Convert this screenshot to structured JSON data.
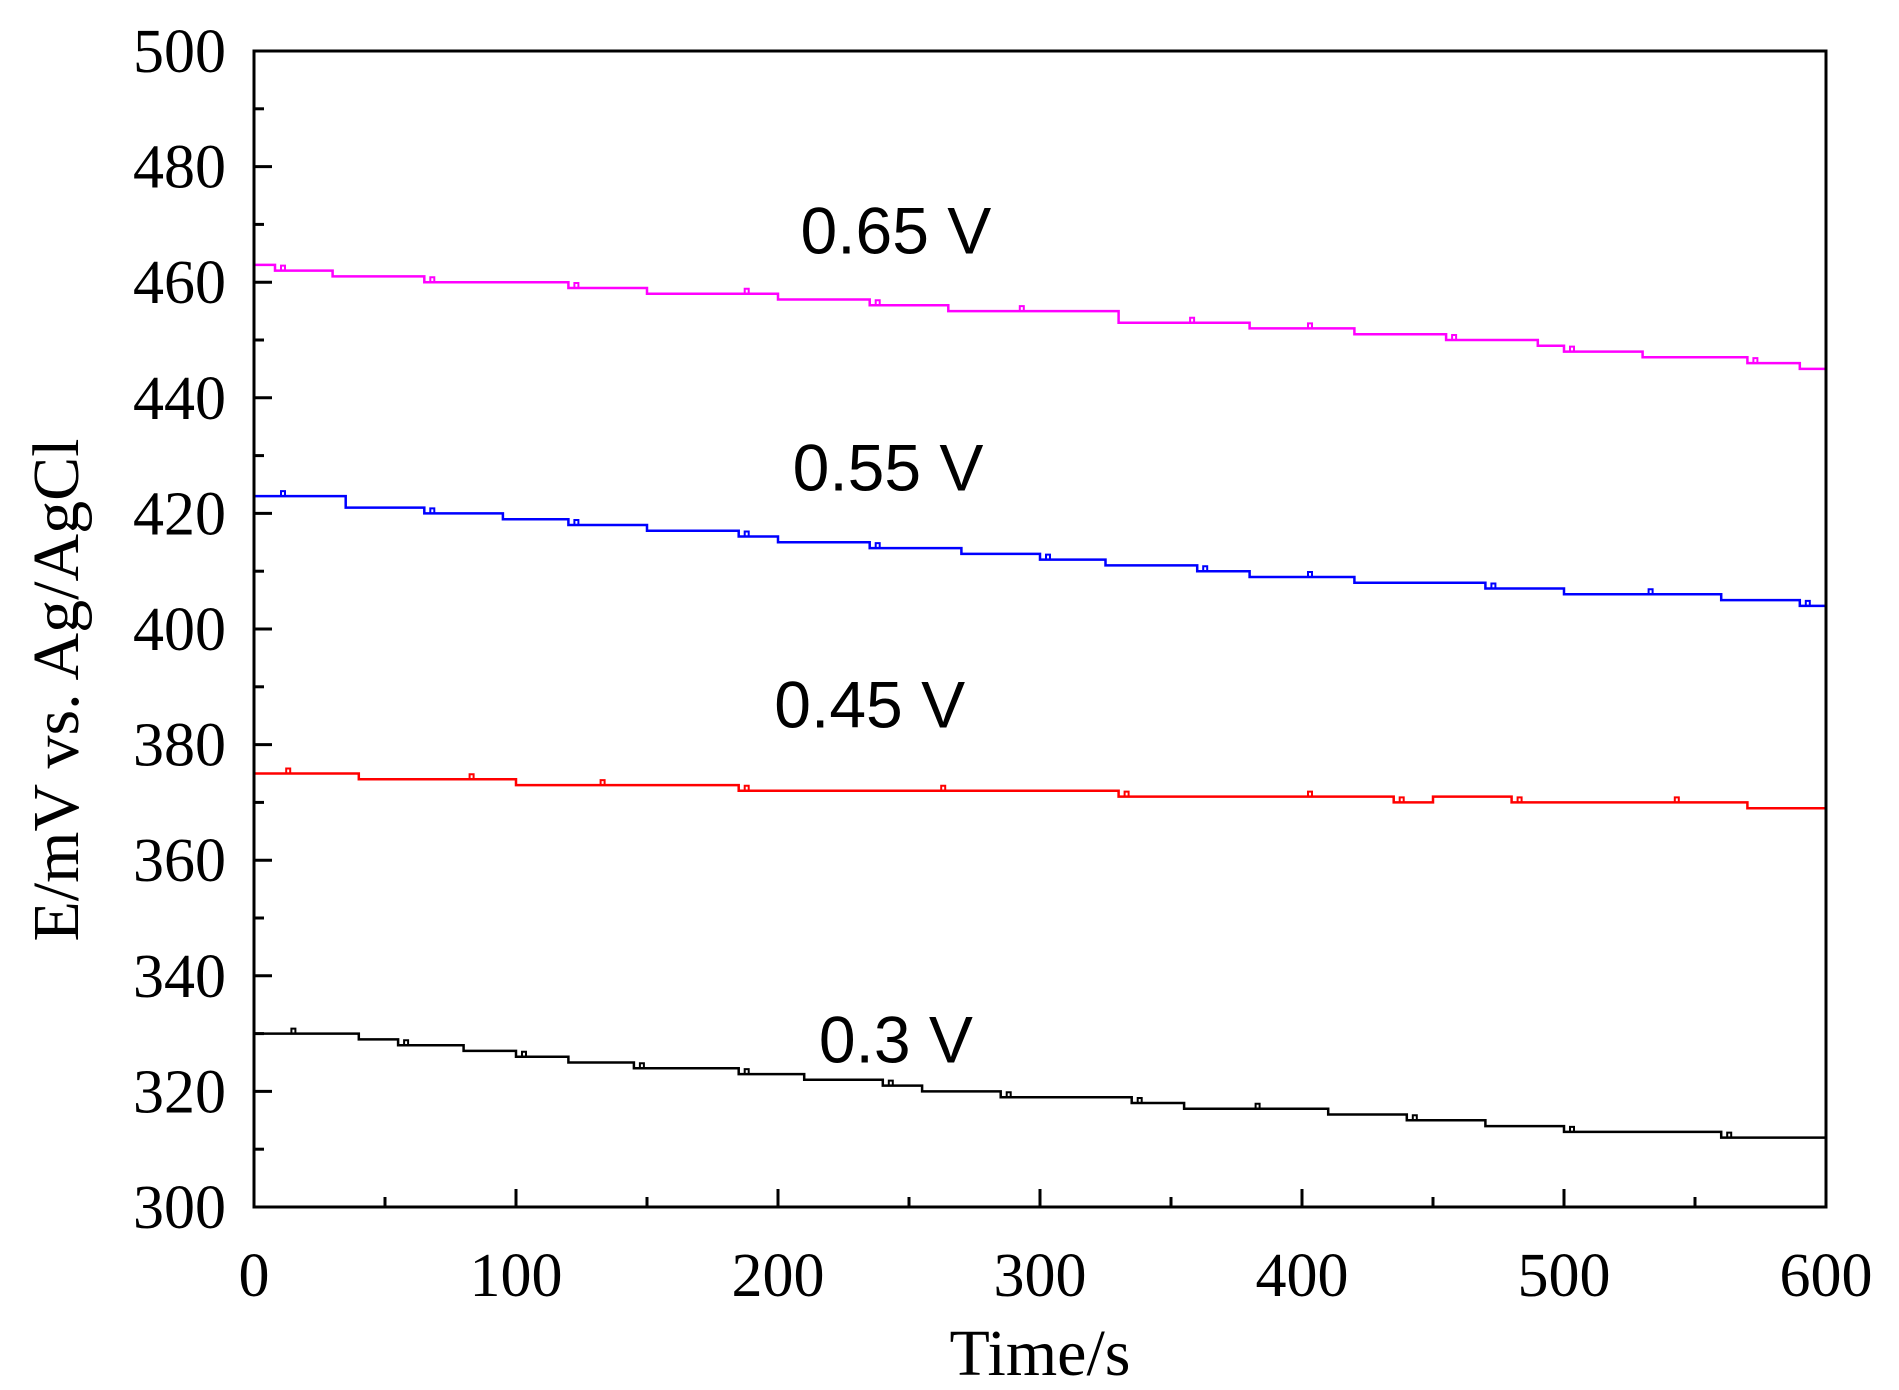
{
  "chart_data": {
    "type": "line",
    "title": "",
    "xlabel": "Time/s",
    "ylabel": "E/mV vs. Ag/AgCl",
    "xlim": [
      0,
      600
    ],
    "ylim": [
      300,
      500
    ],
    "xticks": [
      0,
      100,
      200,
      300,
      400,
      500,
      600
    ],
    "yticks": [
      300,
      320,
      340,
      360,
      380,
      400,
      420,
      440,
      460,
      480,
      500
    ],
    "grid": false,
    "legend": "none",
    "series": [
      {
        "name": "0.65 V",
        "label": "0.65 V",
        "color": "#ff00ff",
        "label_at": [
          245,
          465
        ],
        "x": [
          0,
          8,
          30,
          65,
          95,
          120,
          150,
          185,
          200,
          235,
          265,
          290,
          330,
          355,
          380,
          400,
          420,
          455,
          490,
          500,
          530,
          570,
          590,
          600
        ],
        "y": [
          463,
          462,
          461,
          460,
          460,
          459,
          458,
          458,
          457,
          456,
          455,
          455,
          453,
          453,
          452,
          452,
          451,
          450,
          449,
          448,
          447,
          446,
          445,
          445
        ]
      },
      {
        "name": "0.55 V",
        "label": "0.55 V",
        "color": "#0000ff",
        "label_at": [
          242,
          424
        ],
        "x": [
          0,
          8,
          35,
          65,
          95,
          120,
          150,
          185,
          200,
          235,
          270,
          300,
          325,
          360,
          380,
          400,
          420,
          470,
          500,
          530,
          560,
          590,
          600
        ],
        "y": [
          423,
          423,
          421,
          420,
          419,
          418,
          417,
          416,
          415,
          414,
          413,
          412,
          411,
          410,
          409,
          409,
          408,
          407,
          406,
          406,
          405,
          404,
          404
        ]
      },
      {
        "name": "0.45 V",
        "label": "0.45 V",
        "color": "#ff0000",
        "label_at": [
          235,
          383
        ],
        "x": [
          0,
          10,
          40,
          80,
          100,
          130,
          160,
          185,
          220,
          260,
          300,
          330,
          370,
          400,
          420,
          435,
          450,
          480,
          510,
          540,
          570,
          600
        ],
        "y": [
          375,
          375,
          374,
          374,
          373,
          373,
          373,
          372,
          372,
          372,
          372,
          371,
          371,
          371,
          371,
          370,
          371,
          370,
          370,
          370,
          369,
          369
        ]
      },
      {
        "name": "0.3 V",
        "label": "0.3 V",
        "color": "#000000",
        "label_at": [
          245,
          325
        ],
        "x": [
          0,
          12,
          40,
          55,
          80,
          100,
          120,
          145,
          160,
          185,
          210,
          240,
          255,
          285,
          310,
          335,
          355,
          380,
          410,
          440,
          470,
          500,
          530,
          560,
          600
        ],
        "y": [
          330,
          330,
          329,
          328,
          327,
          326,
          325,
          324,
          324,
          323,
          322,
          321,
          320,
          319,
          319,
          318,
          317,
          317,
          316,
          315,
          314,
          313,
          313,
          312,
          311
        ]
      }
    ]
  }
}
